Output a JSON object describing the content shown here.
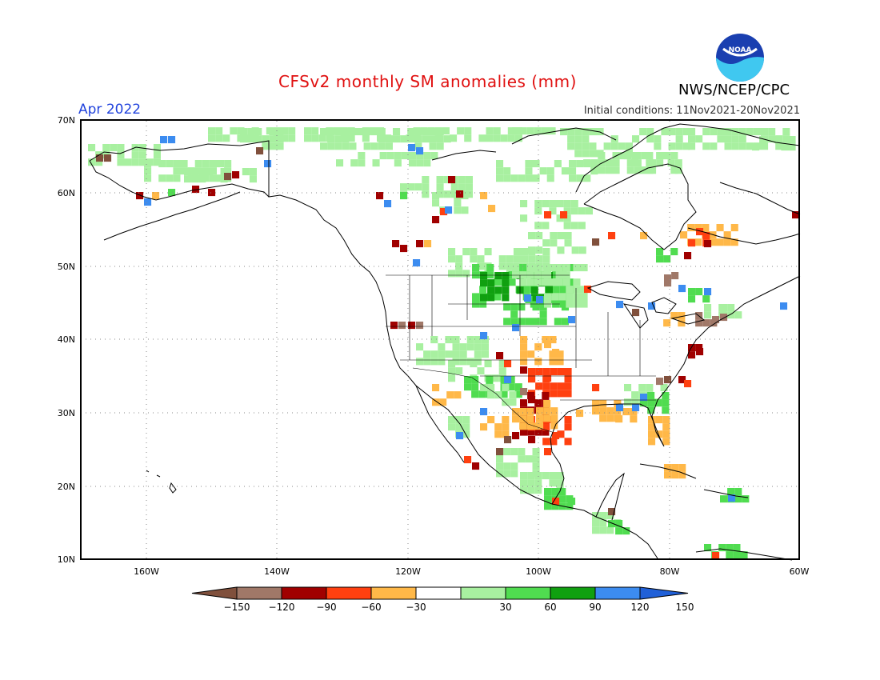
{
  "title": "CFSv2 monthly SM anomalies (mm)",
  "month_label": "Apr 2022",
  "initial_conditions": "Initial conditions: 11Nov2021-20Nov2021",
  "agency": "NWS/NCEP/CPC",
  "logo_text": "NOAA",
  "axes": {
    "lat_ticks": [
      "70N",
      "60N",
      "50N",
      "40N",
      "30N",
      "20N",
      "10N"
    ],
    "lon_ticks": [
      "160W",
      "140W",
      "120W",
      "100W",
      "80W",
      "60W"
    ]
  },
  "colorbar": {
    "labels": [
      "-150",
      "-120",
      "-90",
      "-60",
      "-30",
      "30",
      "60",
      "90",
      "120",
      "150"
    ],
    "colors": [
      "#80503c",
      "#a07868",
      "#a00000",
      "#ff4010",
      "#ffb848",
      "#ffffff",
      "#a8f0a0",
      "#50dc50",
      "#10a010",
      "#3c8cf0",
      "#2060d8"
    ]
  }
}
